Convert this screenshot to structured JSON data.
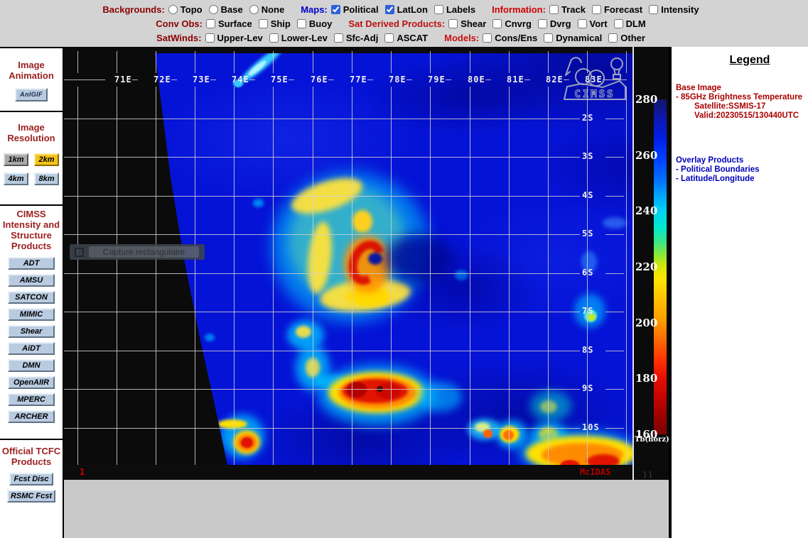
{
  "toolbar": {
    "rows": [
      {
        "groups": [
          {
            "label": "Backgrounds:",
            "color": "#8b0000",
            "items": [
              {
                "type": "radio",
                "label": "Topo",
                "checked": false
              },
              {
                "type": "radio",
                "label": "Base",
                "checked": false
              },
              {
                "type": "radio",
                "label": "None",
                "checked": false
              }
            ]
          },
          {
            "label": "Maps:",
            "color": "#0000cc",
            "items": [
              {
                "type": "checkbox",
                "label": "Political",
                "checked": true
              },
              {
                "type": "checkbox",
                "label": "LatLon",
                "checked": true
              },
              {
                "type": "checkbox",
                "label": "Labels",
                "checked": false
              }
            ]
          },
          {
            "label": "Information:",
            "color": "#cc0000",
            "items": [
              {
                "type": "checkbox",
                "label": "Track",
                "checked": false
              },
              {
                "type": "checkbox",
                "label": "Forecast",
                "checked": false
              },
              {
                "type": "checkbox",
                "label": "Intensity",
                "checked": false
              }
            ]
          }
        ]
      },
      {
        "groups": [
          {
            "label": "Conv Obs:",
            "color": "#8b0000",
            "items": [
              {
                "type": "checkbox",
                "label": "Surface",
                "checked": false
              },
              {
                "type": "checkbox",
                "label": "Ship",
                "checked": false
              },
              {
                "type": "checkbox",
                "label": "Buoy",
                "checked": false
              }
            ]
          },
          {
            "label": "Sat Derived Products:",
            "color": "#bb1111",
            "items": [
              {
                "type": "checkbox",
                "label": "Shear",
                "checked": false
              },
              {
                "type": "checkbox",
                "label": "Cnvrg",
                "checked": false
              },
              {
                "type": "checkbox",
                "label": "Dvrg",
                "checked": false
              },
              {
                "type": "checkbox",
                "label": "Vort",
                "checked": false
              },
              {
                "type": "checkbox",
                "label": "DLM",
                "checked": false
              }
            ]
          }
        ]
      },
      {
        "groups": [
          {
            "label": "SatWinds:",
            "color": "#8b0000",
            "items": [
              {
                "type": "checkbox",
                "label": "Upper-Lev",
                "checked": false
              },
              {
                "type": "checkbox",
                "label": "Lower-Lev",
                "checked": false
              },
              {
                "type": "checkbox",
                "label": "Sfc-Adj",
                "checked": false
              },
              {
                "type": "checkbox",
                "label": "ASCAT",
                "checked": false
              }
            ]
          },
          {
            "label": "Models:",
            "color": "#cc1111",
            "items": [
              {
                "type": "checkbox",
                "label": "Cons/Ens",
                "checked": false
              },
              {
                "type": "checkbox",
                "label": "Dynamical",
                "checked": false
              },
              {
                "type": "checkbox",
                "label": "Other",
                "checked": false
              }
            ]
          }
        ]
      }
    ]
  },
  "sidebar": {
    "sections": [
      {
        "heading": "Image Animation",
        "layout": "column",
        "buttons": [
          {
            "label": "AnIGIF",
            "variant": "small"
          }
        ]
      },
      {
        "heading": "Image Resolution",
        "layout": "grid",
        "buttons": [
          {
            "label": "1km",
            "variant": "gray"
          },
          {
            "label": "2km",
            "variant": "selected"
          },
          {
            "label": "4km",
            "variant": ""
          },
          {
            "label": "8km",
            "variant": ""
          }
        ]
      },
      {
        "heading": "CIMSS Intensity and Structure Products",
        "layout": "column",
        "buttons": [
          {
            "label": "ADT"
          },
          {
            "label": "AMSU"
          },
          {
            "label": "SATCON"
          },
          {
            "label": "MIMIC"
          },
          {
            "label": "Shear"
          },
          {
            "label": "AiDT"
          },
          {
            "label": "DMN"
          },
          {
            "label": "OpenAIIR"
          },
          {
            "label": "MPERC"
          },
          {
            "label": "ARCHER"
          }
        ]
      },
      {
        "heading": "Official TCFC Products",
        "layout": "column",
        "buttons": [
          {
            "label": "Fcst Disc"
          },
          {
            "label": "RSMC Fcst"
          }
        ]
      }
    ]
  },
  "map": {
    "lon_labels": [
      "71E",
      "72E",
      "73E",
      "74E",
      "75E",
      "76E",
      "77E",
      "78E",
      "79E",
      "80E",
      "81E",
      "82E",
      "83E"
    ],
    "lat_labels": [
      "2S",
      "3S",
      "4S",
      "5S",
      "6S",
      "7S",
      "8S",
      "9S",
      "10S"
    ],
    "frame_number": "1",
    "watermark": "McIDAS",
    "logo_text": "CIMSS",
    "tooltip": "Capture rectangulaire"
  },
  "colorbar": {
    "ticks": [
      "280",
      "260",
      "240",
      "220",
      "200",
      "180",
      "160"
    ],
    "unit": "Tb(horz)",
    "frame_count": "11"
  },
  "legend": {
    "title": "Legend",
    "base_lines": [
      {
        "text": "Base Image",
        "ind": 0
      },
      {
        "text": "-  85GHz Brightness Temperature",
        "ind": 0
      },
      {
        "text": "Satellite:SSMIS-17",
        "ind": 1
      },
      {
        "text": "Valid:20230515/130440UTC",
        "ind": 1
      }
    ],
    "overlay_lines": [
      {
        "text": "Overlay Products",
        "ind": 0
      },
      {
        "text": "-  Political Boundaries",
        "ind": 0
      },
      {
        "text": "-  Latitude/Longitude",
        "ind": 0
      }
    ],
    "base_color": "#aa0000",
    "overlay_color": "#0000bb"
  },
  "colors": {
    "checkbox_accent": "#2e62d9",
    "selected_resolution_bg": "#f4c51a",
    "heading_red": "#9a1f1f"
  }
}
